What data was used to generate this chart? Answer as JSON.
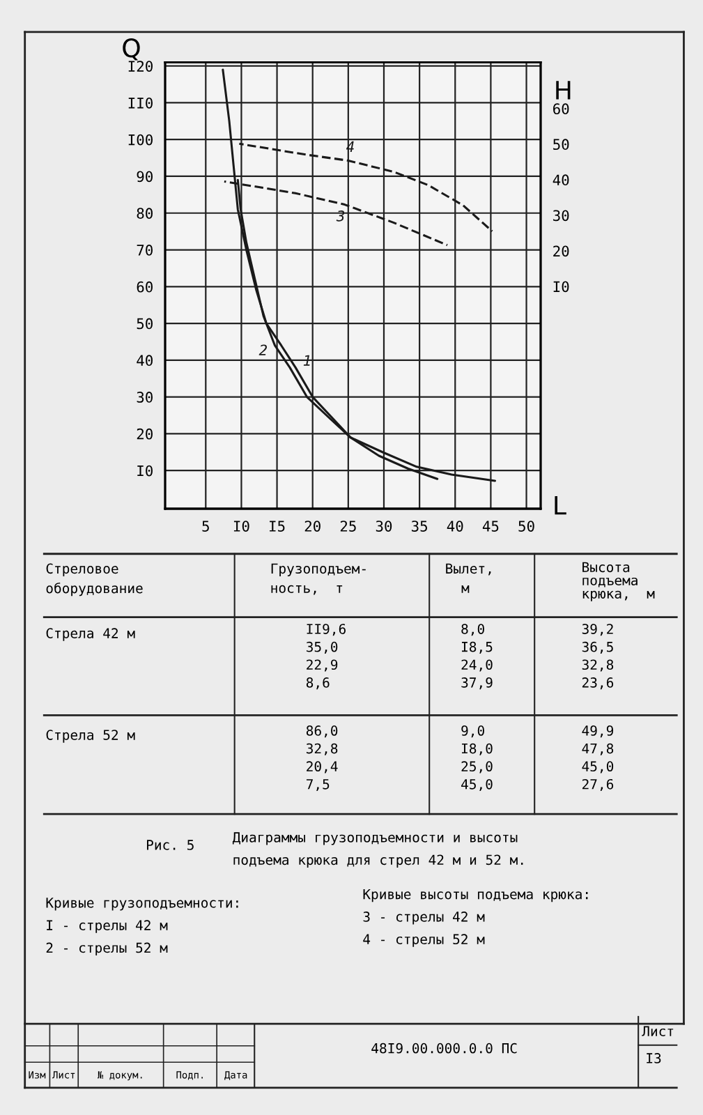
{
  "chart_data": {
    "type": "line",
    "title": "Диаграммы грузоподъемности и высоты\nподъема крюка для стрел 42 м и 52 м.",
    "xlabel": "L",
    "ylabel": "Q",
    "y2label": "H",
    "series": [
      {
        "name": "1",
        "color": "#1a1a1a",
        "line_style": "solid",
        "x": [
          7.4,
          8.3,
          8.9,
          9.5,
          10.7,
          12.1,
          13.5,
          15.6,
          17.6,
          20.0,
          22.9,
          25.3,
          29.3,
          33.4,
          37.5
        ],
        "values": [
          119,
          105,
          93,
          81,
          70,
          59,
          50,
          44,
          38,
          30,
          24,
          19,
          14,
          10.5,
          7.7
        ]
      },
      {
        "name": "2",
        "color": "#1a1a1a",
        "line_style": "solid",
        "x": [
          9.5,
          9.9,
          10.7,
          11.9,
          13.1,
          14.7,
          16.8,
          19.2,
          22.5,
          25.3,
          29.8,
          34.6,
          39.5,
          45.6
        ],
        "values": [
          89,
          81,
          72,
          62,
          52,
          44,
          38,
          30,
          24,
          19,
          15,
          11,
          8.9,
          7.2
        ]
      },
      {
        "name": "3",
        "color": "#1a1a1a",
        "line_style": "dashed",
        "axis": "y2",
        "x": [
          7.6,
          17.6,
          24.5,
          31.4,
          38.9
        ],
        "values": [
          39.5,
          36.2,
          33.0,
          27.9,
          21.6
        ]
      },
      {
        "name": "4",
        "color": "#1a1a1a",
        "line_style": "dashed",
        "axis": "y2",
        "x": [
          9.7,
          19.2,
          24.9,
          31.4,
          36.2,
          41.1,
          45.2
        ],
        "values": [
          50.1,
          47.0,
          45.4,
          42.2,
          38.5,
          32.8,
          25.5
        ]
      }
    ],
    "xlim": [
      -0.7,
      52
    ],
    "xticks": [
      5,
      {
        "value": 10,
        "label": "I0"
      },
      {
        "value": 15,
        "label": "I5"
      },
      20,
      25,
      30,
      35,
      40,
      45,
      50
    ],
    "ylim": [
      -0.4,
      121
    ],
    "yticks": [
      {
        "value": 10,
        "label": "I0"
      },
      20,
      30,
      40,
      50,
      60,
      70,
      80,
      90,
      {
        "value": 100,
        "label": "I00"
      },
      {
        "value": 110,
        "label": "II0"
      },
      {
        "value": 120,
        "label": "I20"
      }
    ],
    "y2lim": [
      -52.5,
      73
    ],
    "y2ticks": [
      {
        "value": 10,
        "label": "I0"
      },
      20,
      30,
      40,
      50,
      60
    ],
    "grid": true,
    "marker": "none",
    "annotations": [
      "Стреловое\nоборудование",
      "Грузоподъем-\nность,  т",
      "Вылет,\n  м",
      "Высота\nподъема\nкрюка,  м",
      "Стрела 42 м",
      "II9,6\n35,0\n22,9\n8,6",
      "8,0\nI8,5\n24,0\n37,9",
      "39,2\n36,5\n32,8\n23,6",
      "Стрела 52 м",
      "86,0\n32,8\n20,4\n7,5",
      "9,0\nI8,0\n25,0\n45,0",
      "49,9\n47,8\n45,0\n27,6",
      "Рис. 5",
      "Кривые грузоподъемности:\nI - стрелы 42 м\n2 - стрелы 52 м",
      "Кривые высоты подъема крюка:\n3 - стрелы 42 м\n4 - стрелы 52 м",
      "48I9.00.000.0.0 ПС",
      "Лист",
      "I3",
      "Изм",
      "Лист",
      "№ докум.",
      "Подп.",
      "Дата"
    ]
  }
}
